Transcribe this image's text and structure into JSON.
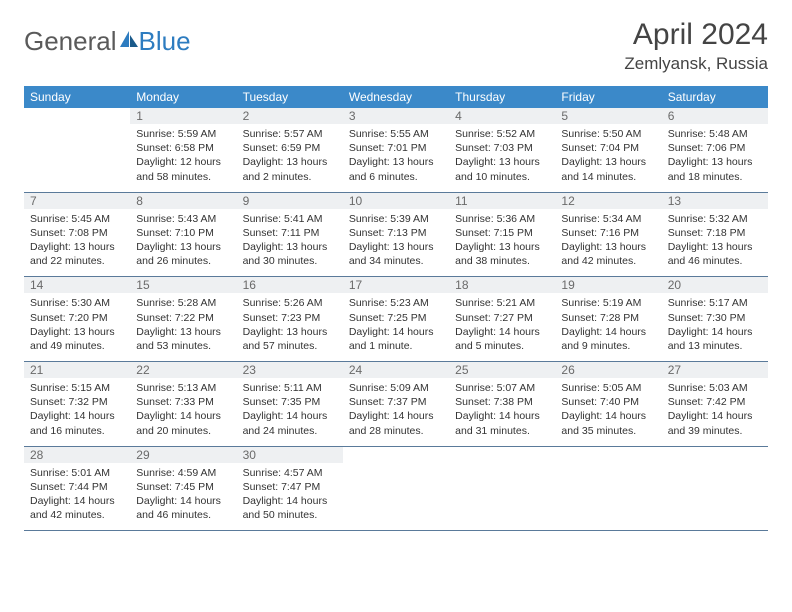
{
  "logo": {
    "text_a": "General",
    "text_b": "Blue"
  },
  "header": {
    "month": "April 2024",
    "location": "Zemlyansk, Russia"
  },
  "colors": {
    "header_bg": "#3b89c9",
    "header_text": "#ffffff",
    "daynum_bg": "#eef0f2",
    "daynum_text": "#6a6a6a",
    "body_text": "#333333",
    "rule": "#5a7a9a",
    "logo_gray": "#5a5a5a",
    "logo_blue": "#2d7cc0"
  },
  "dow": [
    "Sunday",
    "Monday",
    "Tuesday",
    "Wednesday",
    "Thursday",
    "Friday",
    "Saturday"
  ],
  "weeks": [
    [
      {
        "n": "",
        "lines": []
      },
      {
        "n": "1",
        "lines": [
          "Sunrise: 5:59 AM",
          "Sunset: 6:58 PM",
          "Daylight: 12 hours",
          "and 58 minutes."
        ]
      },
      {
        "n": "2",
        "lines": [
          "Sunrise: 5:57 AM",
          "Sunset: 6:59 PM",
          "Daylight: 13 hours",
          "and 2 minutes."
        ]
      },
      {
        "n": "3",
        "lines": [
          "Sunrise: 5:55 AM",
          "Sunset: 7:01 PM",
          "Daylight: 13 hours",
          "and 6 minutes."
        ]
      },
      {
        "n": "4",
        "lines": [
          "Sunrise: 5:52 AM",
          "Sunset: 7:03 PM",
          "Daylight: 13 hours",
          "and 10 minutes."
        ]
      },
      {
        "n": "5",
        "lines": [
          "Sunrise: 5:50 AM",
          "Sunset: 7:04 PM",
          "Daylight: 13 hours",
          "and 14 minutes."
        ]
      },
      {
        "n": "6",
        "lines": [
          "Sunrise: 5:48 AM",
          "Sunset: 7:06 PM",
          "Daylight: 13 hours",
          "and 18 minutes."
        ]
      }
    ],
    [
      {
        "n": "7",
        "lines": [
          "Sunrise: 5:45 AM",
          "Sunset: 7:08 PM",
          "Daylight: 13 hours",
          "and 22 minutes."
        ]
      },
      {
        "n": "8",
        "lines": [
          "Sunrise: 5:43 AM",
          "Sunset: 7:10 PM",
          "Daylight: 13 hours",
          "and 26 minutes."
        ]
      },
      {
        "n": "9",
        "lines": [
          "Sunrise: 5:41 AM",
          "Sunset: 7:11 PM",
          "Daylight: 13 hours",
          "and 30 minutes."
        ]
      },
      {
        "n": "10",
        "lines": [
          "Sunrise: 5:39 AM",
          "Sunset: 7:13 PM",
          "Daylight: 13 hours",
          "and 34 minutes."
        ]
      },
      {
        "n": "11",
        "lines": [
          "Sunrise: 5:36 AM",
          "Sunset: 7:15 PM",
          "Daylight: 13 hours",
          "and 38 minutes."
        ]
      },
      {
        "n": "12",
        "lines": [
          "Sunrise: 5:34 AM",
          "Sunset: 7:16 PM",
          "Daylight: 13 hours",
          "and 42 minutes."
        ]
      },
      {
        "n": "13",
        "lines": [
          "Sunrise: 5:32 AM",
          "Sunset: 7:18 PM",
          "Daylight: 13 hours",
          "and 46 minutes."
        ]
      }
    ],
    [
      {
        "n": "14",
        "lines": [
          "Sunrise: 5:30 AM",
          "Sunset: 7:20 PM",
          "Daylight: 13 hours",
          "and 49 minutes."
        ]
      },
      {
        "n": "15",
        "lines": [
          "Sunrise: 5:28 AM",
          "Sunset: 7:22 PM",
          "Daylight: 13 hours",
          "and 53 minutes."
        ]
      },
      {
        "n": "16",
        "lines": [
          "Sunrise: 5:26 AM",
          "Sunset: 7:23 PM",
          "Daylight: 13 hours",
          "and 57 minutes."
        ]
      },
      {
        "n": "17",
        "lines": [
          "Sunrise: 5:23 AM",
          "Sunset: 7:25 PM",
          "Daylight: 14 hours",
          "and 1 minute."
        ]
      },
      {
        "n": "18",
        "lines": [
          "Sunrise: 5:21 AM",
          "Sunset: 7:27 PM",
          "Daylight: 14 hours",
          "and 5 minutes."
        ]
      },
      {
        "n": "19",
        "lines": [
          "Sunrise: 5:19 AM",
          "Sunset: 7:28 PM",
          "Daylight: 14 hours",
          "and 9 minutes."
        ]
      },
      {
        "n": "20",
        "lines": [
          "Sunrise: 5:17 AM",
          "Sunset: 7:30 PM",
          "Daylight: 14 hours",
          "and 13 minutes."
        ]
      }
    ],
    [
      {
        "n": "21",
        "lines": [
          "Sunrise: 5:15 AM",
          "Sunset: 7:32 PM",
          "Daylight: 14 hours",
          "and 16 minutes."
        ]
      },
      {
        "n": "22",
        "lines": [
          "Sunrise: 5:13 AM",
          "Sunset: 7:33 PM",
          "Daylight: 14 hours",
          "and 20 minutes."
        ]
      },
      {
        "n": "23",
        "lines": [
          "Sunrise: 5:11 AM",
          "Sunset: 7:35 PM",
          "Daylight: 14 hours",
          "and 24 minutes."
        ]
      },
      {
        "n": "24",
        "lines": [
          "Sunrise: 5:09 AM",
          "Sunset: 7:37 PM",
          "Daylight: 14 hours",
          "and 28 minutes."
        ]
      },
      {
        "n": "25",
        "lines": [
          "Sunrise: 5:07 AM",
          "Sunset: 7:38 PM",
          "Daylight: 14 hours",
          "and 31 minutes."
        ]
      },
      {
        "n": "26",
        "lines": [
          "Sunrise: 5:05 AM",
          "Sunset: 7:40 PM",
          "Daylight: 14 hours",
          "and 35 minutes."
        ]
      },
      {
        "n": "27",
        "lines": [
          "Sunrise: 5:03 AM",
          "Sunset: 7:42 PM",
          "Daylight: 14 hours",
          "and 39 minutes."
        ]
      }
    ],
    [
      {
        "n": "28",
        "lines": [
          "Sunrise: 5:01 AM",
          "Sunset: 7:44 PM",
          "Daylight: 14 hours",
          "and 42 minutes."
        ]
      },
      {
        "n": "29",
        "lines": [
          "Sunrise: 4:59 AM",
          "Sunset: 7:45 PM",
          "Daylight: 14 hours",
          "and 46 minutes."
        ]
      },
      {
        "n": "30",
        "lines": [
          "Sunrise: 4:57 AM",
          "Sunset: 7:47 PM",
          "Daylight: 14 hours",
          "and 50 minutes."
        ]
      },
      {
        "n": "",
        "lines": []
      },
      {
        "n": "",
        "lines": []
      },
      {
        "n": "",
        "lines": []
      },
      {
        "n": "",
        "lines": []
      }
    ]
  ]
}
